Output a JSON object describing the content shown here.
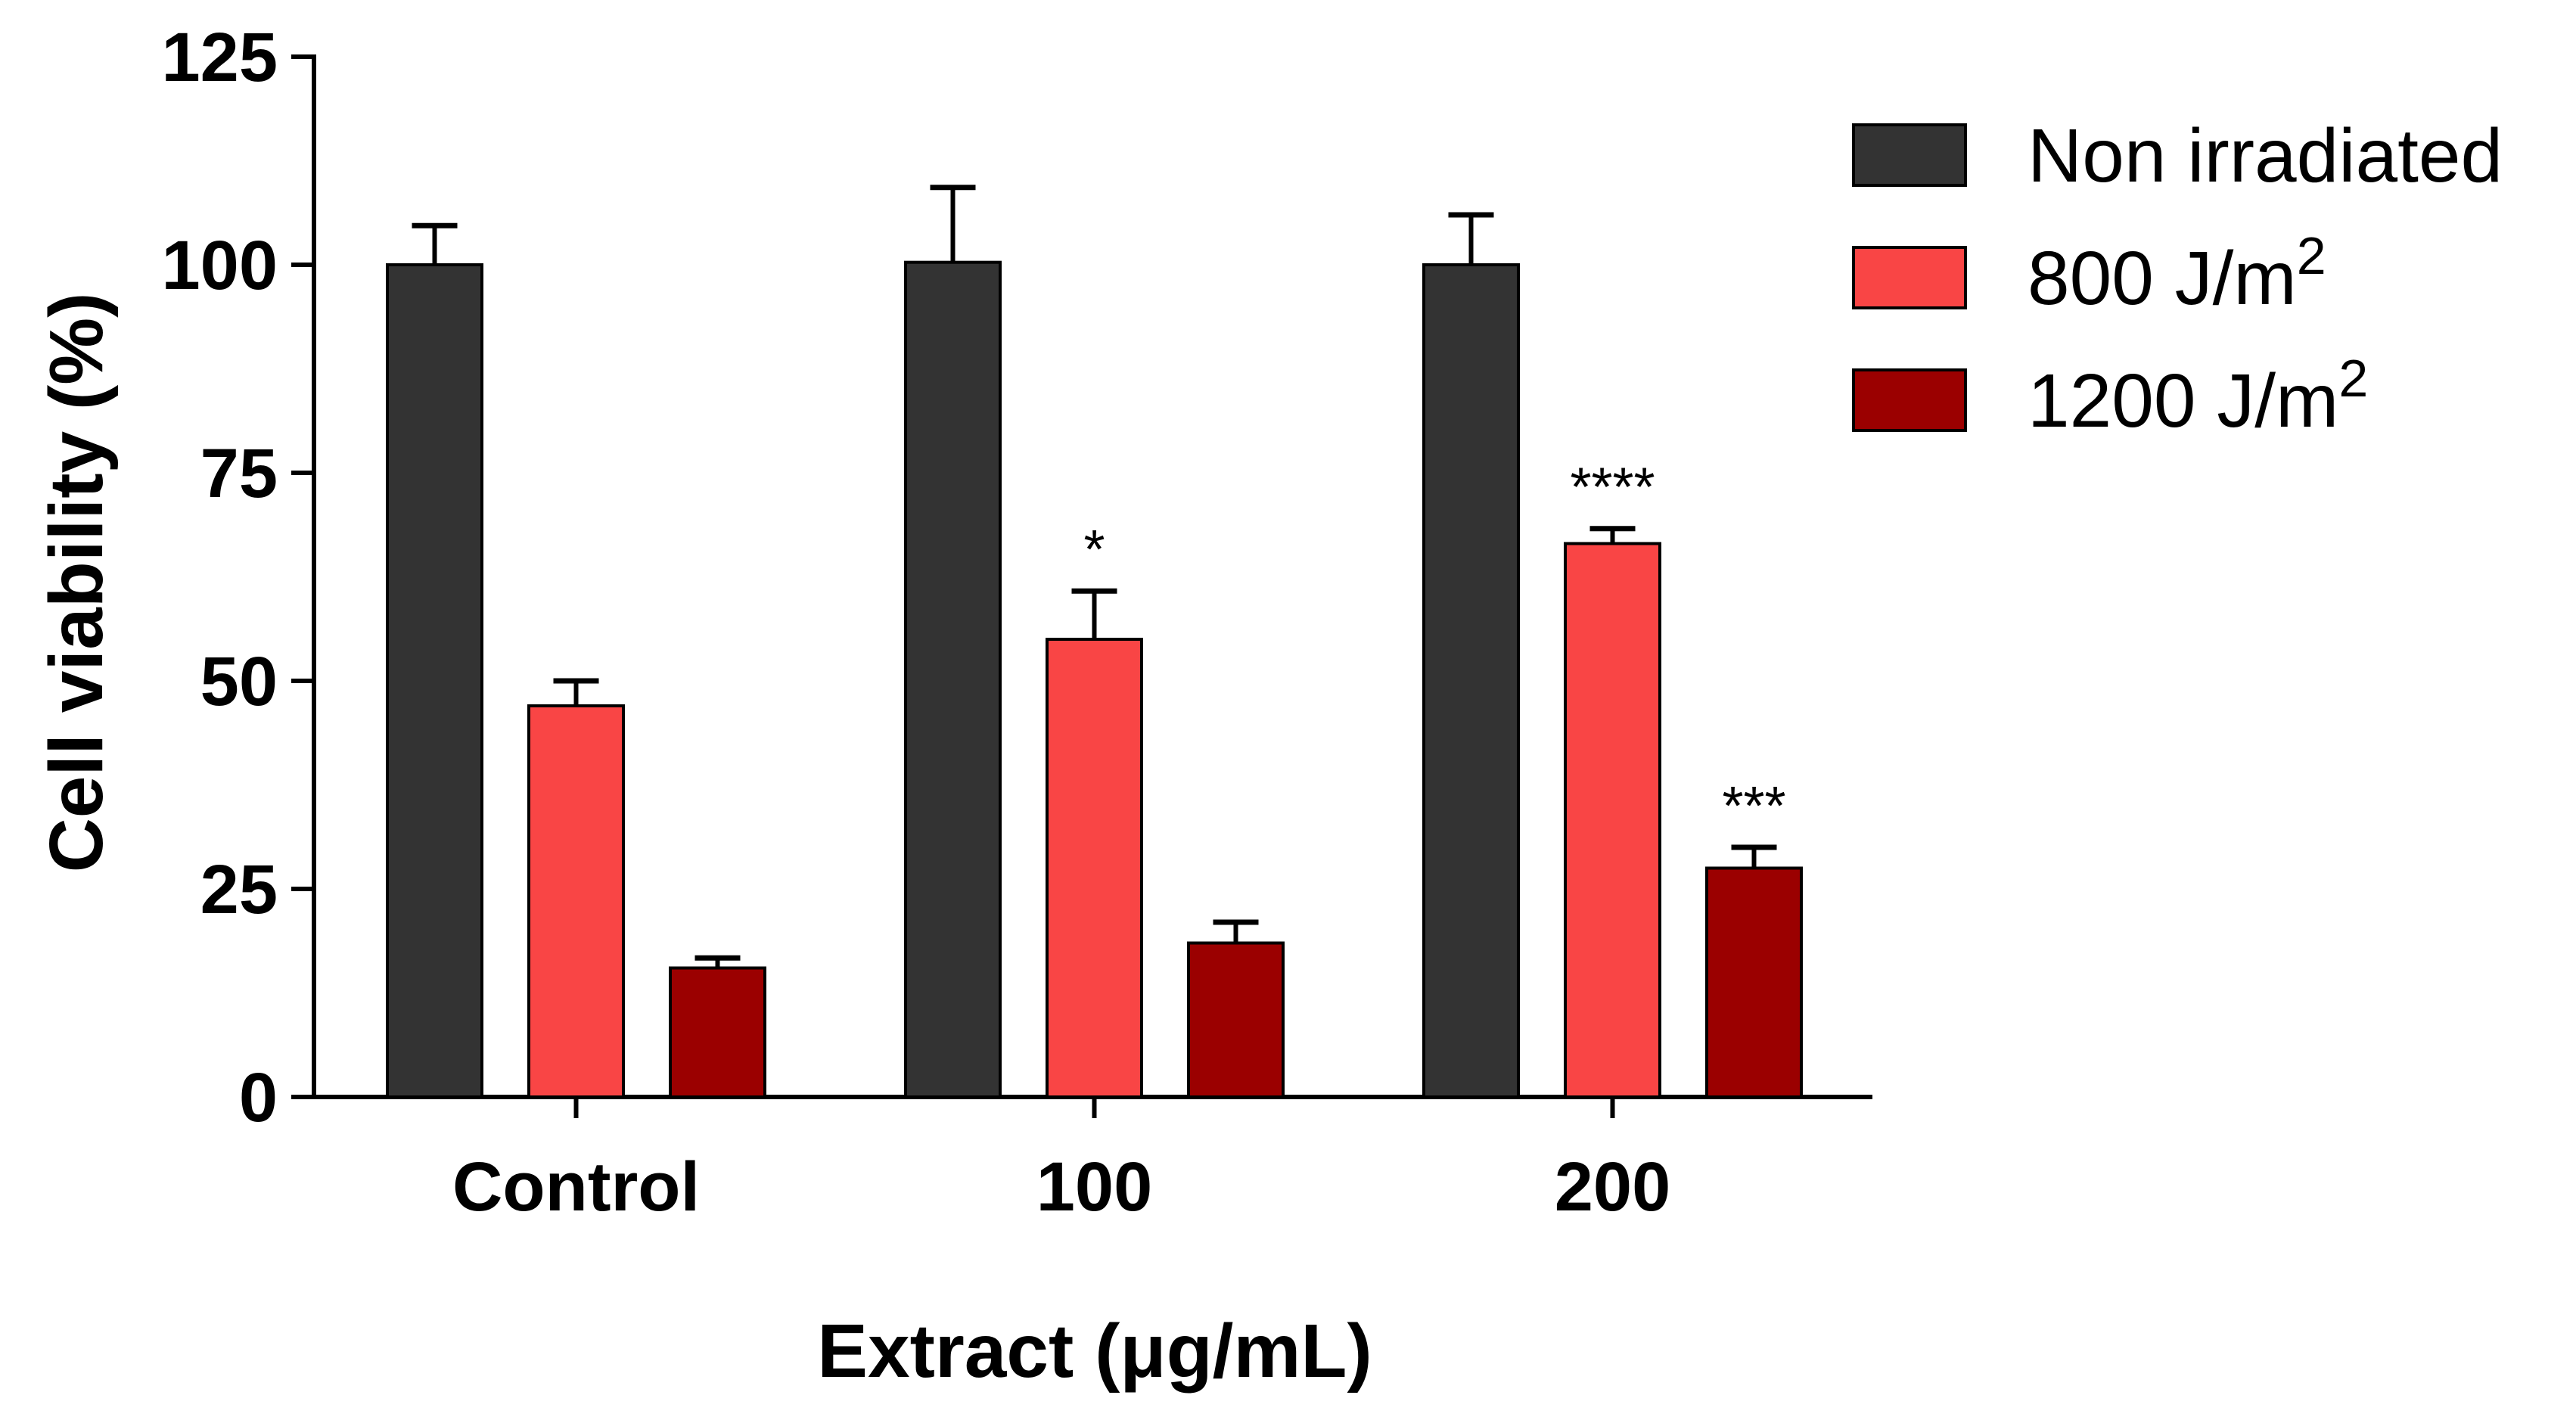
{
  "chart_data": {
    "type": "bar",
    "title": "",
    "xlabel": "Extract (μg/mL)",
    "ylabel": "Cell viability (%)",
    "ylim": [
      0,
      125
    ],
    "yticks": [
      0,
      25,
      50,
      75,
      100,
      125
    ],
    "categories": [
      "Control",
      "100",
      "200"
    ],
    "series": [
      {
        "name": "Non irradiated",
        "color": "#333333",
        "values": [
          100,
          100.3,
          100
        ],
        "errors": [
          4.7,
          9,
          6
        ]
      },
      {
        "name": "800 J/m",
        "superscript": "2",
        "color": "#f94545",
        "values": [
          47,
          55,
          66.5
        ],
        "errors": [
          3,
          5.8,
          1.8
        ]
      },
      {
        "name": "1200 J/m",
        "superscript": "2",
        "color": "#9b0000",
        "values": [
          15.5,
          18.5,
          27.5
        ],
        "errors": [
          1.2,
          2.5,
          2.5
        ]
      }
    ],
    "annotations": [
      {
        "series": 1,
        "category": 1,
        "text": "*"
      },
      {
        "series": 1,
        "category": 2,
        "text": "****"
      },
      {
        "series": 2,
        "category": 2,
        "text": "***"
      }
    ],
    "legend_position": "top-right",
    "grid": false
  }
}
